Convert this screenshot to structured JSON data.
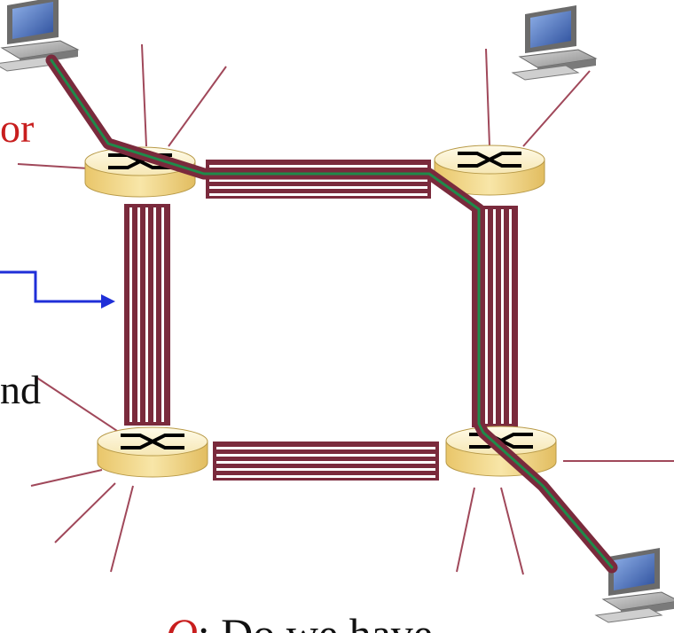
{
  "slide": {
    "fragment_red": "or",
    "fragment_black": "nd",
    "bottom_bullet": "-",
    "bottom_q": "Q",
    "bottom_rest": ": Do we have"
  },
  "colors": {
    "trunk": "#7a2a3c",
    "circuit": "#1f8a4a",
    "spoke": "#a0485a",
    "arrow": "#1f2fd8",
    "router_top": "#fbf1c8",
    "router_side": "#f2d78a"
  },
  "icons": {
    "router": "router-switch-icon",
    "host": "desktop-computer-icon"
  }
}
